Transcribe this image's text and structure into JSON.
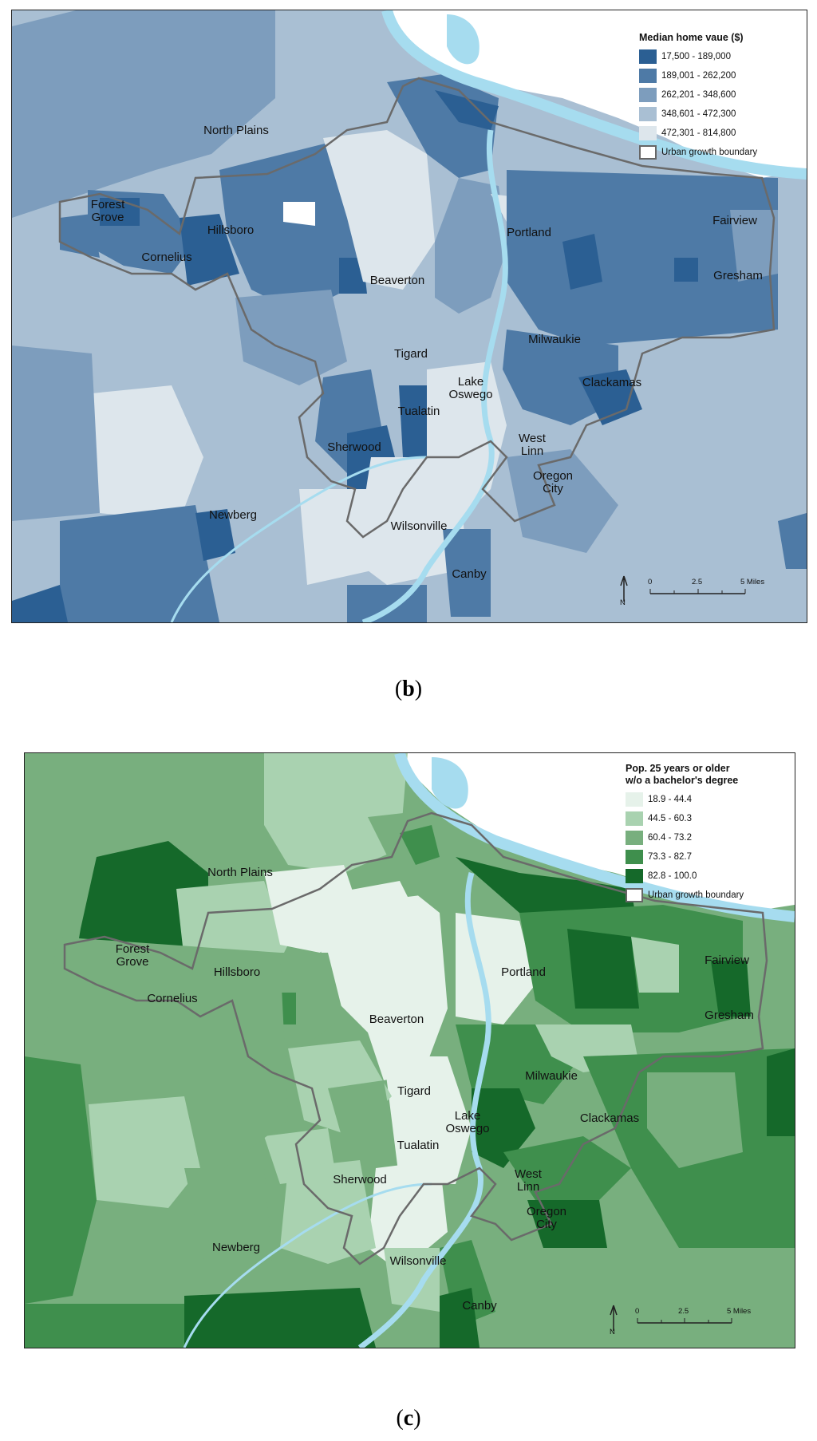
{
  "panel_b": {
    "caption_letter": "b",
    "legend": {
      "title": "Median home vaue ($)",
      "classes": [
        {
          "label": "17,500 - 189,000",
          "color": "#2b5f93"
        },
        {
          "label": "189,001 - 262,200",
          "color": "#4e7aa6"
        },
        {
          "label": "262,201 - 348,600",
          "color": "#7d9dbd"
        },
        {
          "label": "348,601 - 472,300",
          "color": "#a9bfd3"
        },
        {
          "label": "472,301 - 814,800",
          "color": "#dde6ec"
        }
      ],
      "boundary_label": "Urban growth boundary"
    },
    "scale": {
      "ticks": [
        "0",
        "2.5",
        "5 Miles"
      ],
      "north": "N"
    },
    "cities": [
      "North Plains",
      "Forest Grove",
      "Hillsboro",
      "Cornelius",
      "Beaverton",
      "Portland",
      "Fairview",
      "Gresham",
      "Tigard",
      "Milwaukie",
      "Lake Oswego",
      "Clackamas",
      "Tualatin",
      "Sherwood",
      "West Linn",
      "Oregon City",
      "Newberg",
      "Wilsonville",
      "Canby"
    ]
  },
  "panel_c": {
    "caption_letter": "c",
    "legend": {
      "title_line1": "Pop. 25 years or older",
      "title_line2": "w/o a bachelor's degree",
      "classes": [
        {
          "label": "18.9 - 44.4",
          "color": "#e6f2ea"
        },
        {
          "label": "44.5 - 60.3",
          "color": "#a9d2b0"
        },
        {
          "label": "60.4 - 73.2",
          "color": "#78af7e"
        },
        {
          "label": "73.3 - 82.7",
          "color": "#3f8f4d"
        },
        {
          "label": "82.8 - 100.0",
          "color": "#15692a"
        }
      ],
      "boundary_label": "Urban growth boundary"
    },
    "scale": {
      "ticks": [
        "0",
        "2.5",
        "5 Miles"
      ],
      "north": "N"
    },
    "cities": [
      "North Plains",
      "Forest Grove",
      "Hillsboro",
      "Cornelius",
      "Beaverton",
      "Portland",
      "Fairview",
      "Gresham",
      "Milwaukie",
      "Tigard",
      "Lake Oswego",
      "Clackamas",
      "Tualatin",
      "West Linn",
      "Sherwood",
      "Oregon City",
      "Newberg",
      "Wilsonville",
      "Canby"
    ]
  },
  "colors": {
    "river": "#a6dcef",
    "boundary": "#6a6a6a"
  }
}
